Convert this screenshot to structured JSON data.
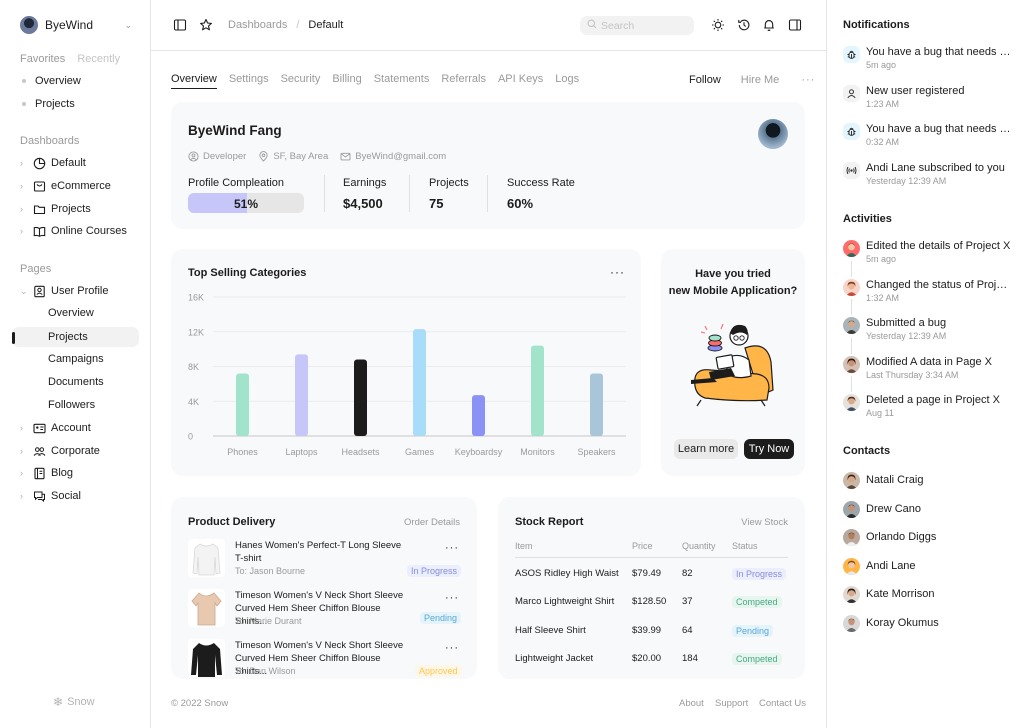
{
  "sidebar": {
    "brand": "ByeWind",
    "favorites_label": "Favorites",
    "recently_label": "Recently",
    "favorites": [
      "Overview",
      "Projects"
    ],
    "dashboards_title": "Dashboards",
    "dashboards": [
      {
        "label": "Default",
        "icon": "pie-chart-icon"
      },
      {
        "label": "eCommerce",
        "icon": "shopping-bag-icon"
      },
      {
        "label": "Projects",
        "icon": "folder-icon"
      },
      {
        "label": "Online Courses",
        "icon": "book-icon"
      }
    ],
    "pages_title": "Pages",
    "user_profile": "User Profile",
    "user_profile_sub": [
      "Overview",
      "Projects",
      "Campaigns",
      "Documents",
      "Followers"
    ],
    "pages": [
      {
        "label": "Account",
        "icon": "id-card-icon"
      },
      {
        "label": "Corporate",
        "icon": "users-icon"
      },
      {
        "label": "Blog",
        "icon": "notebook-icon"
      },
      {
        "label": "Social",
        "icon": "chat-icon"
      }
    ],
    "footer": "Snow"
  },
  "topbar": {
    "crumb_parent": "Dashboards",
    "crumb_sep": "/",
    "crumb_current": "Default",
    "search_placeholder": "Search"
  },
  "tabs": [
    "Overview",
    "Settings",
    "Security",
    "Billing",
    "Statements",
    "Referrals",
    "API Keys",
    "Logs"
  ],
  "tab_actions": {
    "follow": "Follow",
    "hire": "Hire Me",
    "more": "···"
  },
  "profile": {
    "name": "ByeWind Fang",
    "role": "Developer",
    "location": "SF, Bay Area",
    "email": "ByeWind@gmail.com",
    "completion_label": "Profile Compleation",
    "completion_value": "51%",
    "completion_fraction": 0.51,
    "earnings_label": "Earnings",
    "earnings_value": "$4,500",
    "projects_label": "Projects",
    "projects_value": "75",
    "success_label": "Success Rate",
    "success_value": "60%"
  },
  "chart_data": {
    "type": "bar",
    "title": "Top Selling Categories",
    "categories": [
      "Phones",
      "Laptops",
      "Headsets",
      "Games",
      "Keyboardsy",
      "Monitors",
      "Speakers"
    ],
    "values": [
      7200,
      9400,
      8800,
      12300,
      4700,
      10400,
      7200
    ],
    "colors": [
      "#a1e3cb",
      "#c6c7f8",
      "#1c1c1c",
      "#a8dcf8",
      "#8a93f5",
      "#a1e3cb",
      "#a8c5da"
    ],
    "yticks": [
      "0",
      "4K",
      "8K",
      "12K",
      "16K"
    ],
    "ylim": [
      0,
      16000
    ],
    "grid": true
  },
  "chart_menu": "···",
  "mobile": {
    "line1": "Have you tried",
    "line2": "new Mobile Application?",
    "learn_more": "Learn more",
    "try_now": "Try Now"
  },
  "delivery": {
    "title": "Product Delivery",
    "link": "Order Details",
    "items": [
      {
        "title": "Hanes Women's Perfect-T Long Sleeve T-shirt",
        "to": "To: Jason Bourne",
        "status": "In Progress"
      },
      {
        "title": "Timeson Women's V Neck Short Sleeve Curved Hem Sheer Chiffon Blouse Shirts...",
        "to": "To: Marie Durant",
        "status": "Pending"
      },
      {
        "title": "Timeson Women's V Neck Short Sleeve Curved Hem Sheer Chiffon Blouse Shirts...",
        "to": "To: Dan Wilson",
        "status": "Approved"
      }
    ],
    "menu": "···"
  },
  "stock": {
    "title": "Stock Report",
    "link": "View Stock",
    "headers": [
      "Item",
      "Price",
      "Quantity",
      "Status"
    ],
    "rows": [
      {
        "item": "ASOS Ridley High Waist",
        "price": "$79.49",
        "qty": "82",
        "status": "In Progress"
      },
      {
        "item": "Marco Lightweight Shirt",
        "price": "$128.50",
        "qty": "37",
        "status": "Competed"
      },
      {
        "item": "Half Sleeve  Shirt",
        "price": "$39.99",
        "qty": "64",
        "status": "Pending"
      },
      {
        "item": "Lightweight Jacket",
        "price": "$20.00",
        "qty": "184",
        "status": "Competed"
      }
    ]
  },
  "footer": {
    "copyright": "© 2022 Snow",
    "about": "About",
    "support": "Support",
    "contact": "Contact Us"
  },
  "notifications": {
    "title": "Notifications",
    "items": [
      {
        "text": "You have a bug that needs to be fixed.",
        "time": "5m ago",
        "icon": "bug-icon"
      },
      {
        "text": "New user registered",
        "time": "1:23 AM",
        "icon": "user-icon"
      },
      {
        "text": "You have a bug that needs to be fixed.",
        "time": "0:32 AM",
        "icon": "bug-icon"
      },
      {
        "text": "Andi Lane subscribed to you",
        "time": "Yesterday 12:39 AM",
        "icon": "broadcast-icon"
      }
    ]
  },
  "activities": {
    "title": "Activities",
    "items": [
      {
        "text": "Edited the details of Project X",
        "time": "5m ago"
      },
      {
        "text": "Changed the status of Project Y",
        "time": "1:32 AM"
      },
      {
        "text": "Submitted a bug",
        "time": "Yesterday 12:39 AM"
      },
      {
        "text": "Modified A data in Page X",
        "time": "Last Thursday 3:34 AM"
      },
      {
        "text": "Deleted a page in Project X",
        "time": "Aug 11"
      }
    ]
  },
  "contacts": {
    "title": "Contacts",
    "items": [
      "Natali Craig",
      "Drew Cano",
      "Orlando Diggs",
      "Andi Lane",
      "Kate Morrison",
      "Koray Okumus"
    ]
  },
  "colors": {
    "ink": "#1c1c1c",
    "muted": "#9a9a9a",
    "card_bg": "#f7f9fb",
    "progress_fill": "#c6c7f8",
    "status_progress": "#8a8cd9",
    "status_pending": "#59a8d4",
    "status_approved": "#ffc555",
    "status_completed": "#4aa785"
  }
}
